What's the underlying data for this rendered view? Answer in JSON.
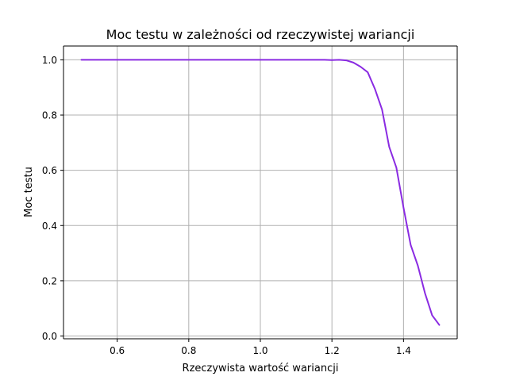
{
  "chart_data": {
    "type": "line",
    "title": "Moc testu w zależności od rzeczywistej wariancji",
    "xlabel": "Rzeczywista wartość wariancji",
    "ylabel": "Moc testu",
    "xlim": [
      0.45,
      1.55
    ],
    "ylim": [
      -0.01,
      1.05
    ],
    "xticks": [
      0.6,
      0.8,
      1.0,
      1.2,
      1.4
    ],
    "xtick_labels": [
      "0.6",
      "0.8",
      "1.0",
      "1.2",
      "1.4"
    ],
    "yticks": [
      0.0,
      0.2,
      0.4,
      0.6,
      0.8,
      1.0
    ],
    "ytick_labels": [
      "0.0",
      "0.2",
      "0.4",
      "0.6",
      "0.8",
      "1.0"
    ],
    "grid": true,
    "line_color": "#8a2be2",
    "series": [
      {
        "x": [
          0.5,
          0.6,
          0.7,
          0.8,
          0.9,
          1.0,
          1.1,
          1.18,
          1.2,
          1.22,
          1.24,
          1.26,
          1.28,
          1.3,
          1.32,
          1.34,
          1.36,
          1.38,
          1.4,
          1.42,
          1.44,
          1.46,
          1.48,
          1.5
        ],
        "y": [
          1.0,
          1.0,
          1.0,
          1.0,
          1.0,
          1.0,
          1.0,
          1.0,
          0.999,
          1.0,
          0.998,
          0.99,
          0.975,
          0.955,
          0.895,
          0.82,
          0.685,
          0.61,
          0.465,
          0.33,
          0.255,
          0.155,
          0.075,
          0.04
        ]
      }
    ]
  }
}
